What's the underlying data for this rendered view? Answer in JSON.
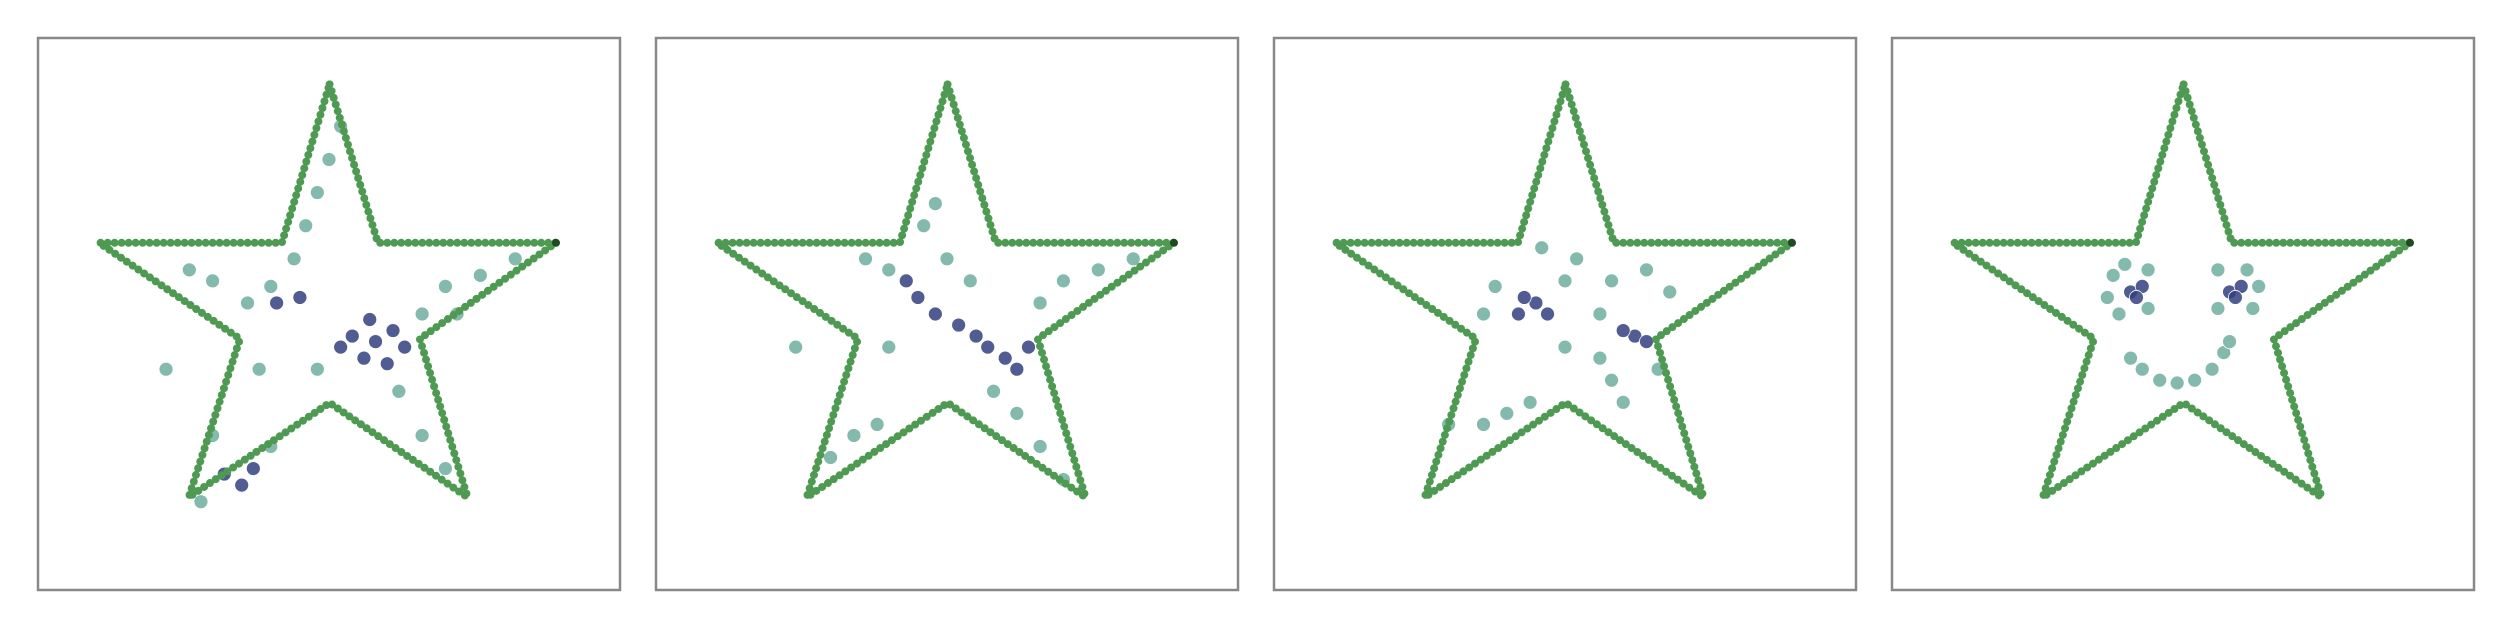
{
  "chart_data": [
    {
      "type": "scatter",
      "xlim": [
        0,
        100
      ],
      "ylim": [
        0,
        100
      ],
      "series": [
        {
          "color": "#6fae9f",
          "x": [
            50,
            48,
            52,
            46,
            40,
            36,
            30,
            26,
            44,
            70,
            76,
            82,
            72,
            66,
            62,
            66,
            70,
            40,
            30,
            28,
            48,
            22,
            38
          ],
          "y": [
            78,
            72,
            84,
            66,
            55,
            52,
            56,
            58,
            60,
            55,
            57,
            60,
            50,
            50,
            36,
            28,
            22,
            26,
            28,
            16,
            40,
            40,
            40
          ]
        },
        {
          "color": "#33407f",
          "x": [
            58,
            56,
            61,
            54,
            60,
            63,
            52,
            57,
            35,
            32,
            37,
            45,
            41
          ],
          "y": [
            45,
            42,
            47,
            46,
            41,
            44,
            44,
            49,
            19,
            21,
            22,
            53,
            52
          ]
        }
      ]
    },
    {
      "type": "scatter",
      "xlim": [
        0,
        100
      ],
      "ylim": [
        0,
        100
      ],
      "series": [
        {
          "color": "#6fae9f",
          "x": [
            40,
            36,
            50,
            54,
            70,
            76,
            82,
            66,
            48,
            46,
            34,
            38,
            30,
            66,
            70,
            62,
            24,
            40,
            58
          ],
          "y": [
            58,
            60,
            60,
            56,
            56,
            58,
            60,
            52,
            70,
            66,
            28,
            30,
            24,
            26,
            20,
            32,
            44,
            44,
            36
          ]
        },
        {
          "color": "#33407f",
          "x": [
            45,
            48,
            43,
            57,
            60,
            62,
            55,
            52,
            64
          ],
          "y": [
            53,
            50,
            56,
            44,
            42,
            40,
            46,
            48,
            44
          ]
        }
      ]
    },
    {
      "type": "scatter",
      "xlim": [
        0,
        100
      ],
      "ylim": [
        0,
        100
      ],
      "series": [
        {
          "color": "#6fae9f",
          "x": [
            38,
            36,
            50,
            52,
            46,
            58,
            64,
            68,
            56,
            40,
            36,
            44,
            30,
            58,
            60,
            56,
            66,
            50
          ],
          "y": [
            55,
            50,
            56,
            60,
            62,
            56,
            58,
            54,
            50,
            32,
            30,
            34,
            30,
            38,
            34,
            42,
            40,
            44
          ]
        },
        {
          "color": "#33407f",
          "x": [
            45,
            43,
            47,
            62,
            60,
            64,
            42
          ],
          "y": [
            52,
            53,
            50,
            46,
            47,
            45,
            50
          ]
        }
      ]
    },
    {
      "type": "scatter",
      "xlim": [
        0,
        100
      ],
      "ylim": [
        0,
        100
      ],
      "series": [
        {
          "color": "#6fae9f",
          "x": [
            38,
            40,
            44,
            37,
            39,
            44,
            56,
            61,
            63,
            62,
            56,
            41,
            43,
            46,
            49,
            52,
            55,
            57,
            58
          ],
          "y": [
            57,
            59,
            58,
            53,
            50,
            51,
            58,
            58,
            55,
            51,
            51,
            42,
            40,
            38,
            37.5,
            38,
            40,
            43,
            45
          ]
        },
        {
          "color": "#33407f",
          "x": [
            41,
            43,
            42,
            58,
            60,
            59
          ],
          "y": [
            54,
            55,
            53,
            54,
            55,
            53
          ]
        }
      ]
    }
  ]
}
